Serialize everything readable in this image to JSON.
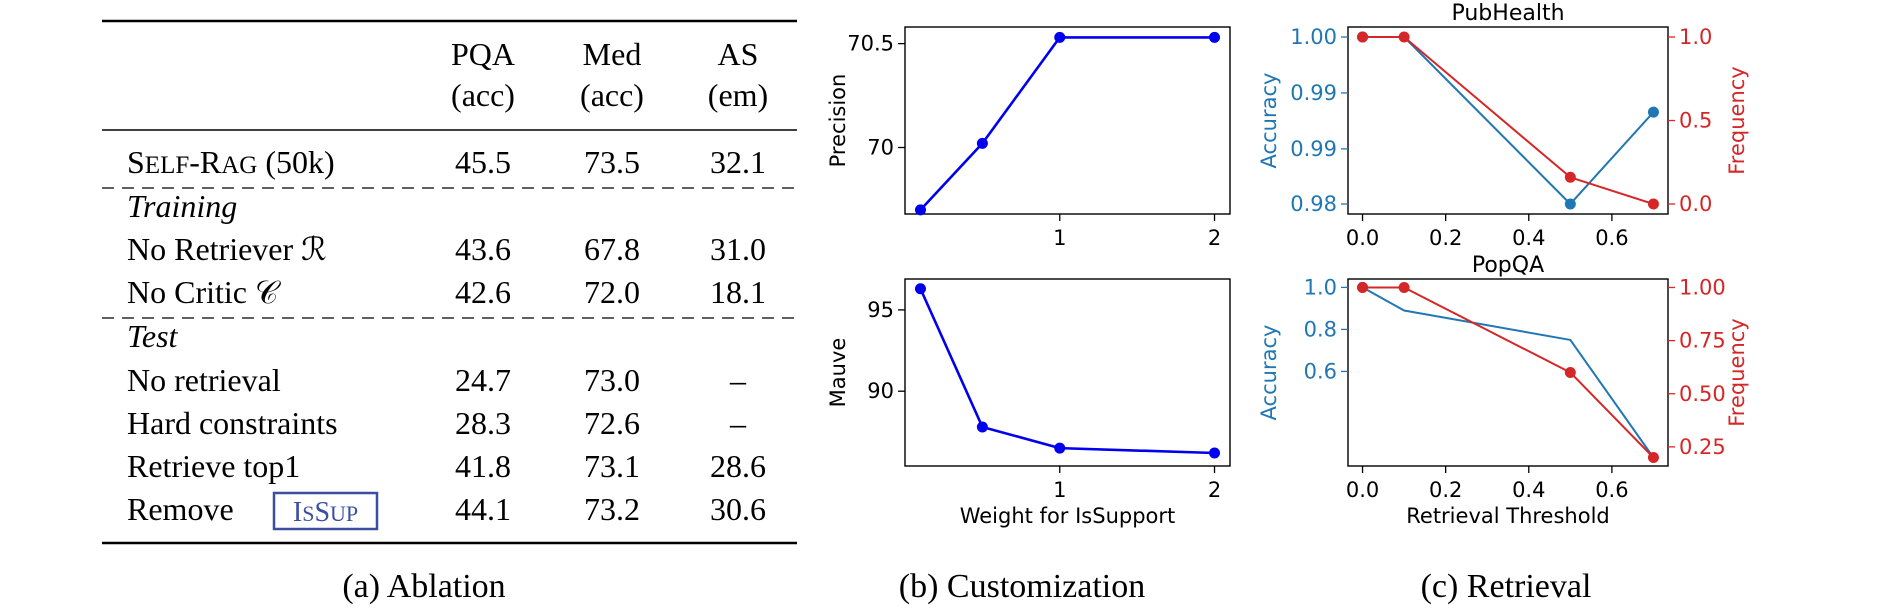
{
  "ablation": {
    "caption": "(a) Ablation",
    "headers": [
      {
        "line1": "PQA",
        "line2": "(acc)"
      },
      {
        "line1": "Med",
        "line2": "(acc)"
      },
      {
        "line1": "AS",
        "line2": "(em)"
      }
    ],
    "main_row": {
      "label": "SELF-RAG (50k)",
      "values": [
        "45.5",
        "73.5",
        "32.1"
      ]
    },
    "training_section": {
      "label": "Training",
      "rows": [
        {
          "label": "No Retriever ℛ",
          "values": [
            "43.6",
            "67.8",
            "31.0"
          ]
        },
        {
          "label": "No Critic 𝒞",
          "values": [
            "42.6",
            "72.0",
            "18.1"
          ]
        }
      ]
    },
    "test_section": {
      "label": "Test",
      "rows": [
        {
          "label": "No retrieval",
          "values": [
            "24.7",
            "73.0",
            "–"
          ]
        },
        {
          "label": "Hard constraints",
          "values": [
            "28.3",
            "72.6",
            "–"
          ]
        },
        {
          "label": "Retrieve top1",
          "values": [
            "41.8",
            "73.1",
            "28.6"
          ]
        },
        {
          "label": "Remove",
          "token": "ISSUP",
          "values": [
            "44.1",
            "73.2",
            "30.6"
          ]
        }
      ]
    },
    "token_color": "#3b4ea0"
  },
  "customization": {
    "caption": "(b) Customization"
  },
  "retrieval": {
    "caption": "(c) Retrieval"
  },
  "colors": {
    "blue_line": "#0000ee",
    "accuracy": "#1f77b4",
    "frequency": "#d62728"
  },
  "chart_data": [
    {
      "id": "b-top",
      "type": "line",
      "title": "",
      "xlabel": "",
      "ylabel": "Precision",
      "x": [
        0.1,
        0.5,
        1,
        2
      ],
      "series": [
        {
          "values": [
            69.7,
            70.02,
            70.53,
            70.53
          ],
          "color": "#0000ee"
        }
      ],
      "xlim": [
        0,
        2.1
      ],
      "ylim": [
        69.68,
        70.58
      ],
      "xticks": [
        1,
        2
      ],
      "yticks": [
        70.0,
        70.5
      ],
      "grid": false
    },
    {
      "id": "b-bottom",
      "type": "line",
      "title": "",
      "xlabel": "Weight for IsSupport",
      "ylabel": "Mauve",
      "x": [
        0.1,
        0.5,
        1,
        2
      ],
      "series": [
        {
          "values": [
            96.3,
            87.8,
            86.5,
            86.2
          ],
          "color": "#0000ee"
        }
      ],
      "xlim": [
        0,
        2.1
      ],
      "ylim": [
        85.4,
        96.9
      ],
      "xticks": [
        1,
        2
      ],
      "yticks": [
        90,
        95
      ],
      "grid": false
    },
    {
      "id": "c-top",
      "type": "line",
      "title": "PubHealth",
      "xlabel": "",
      "ylabel": "Accuracy",
      "y2label": "Frequency",
      "x": [
        0.0,
        0.1,
        0.5,
        0.7
      ],
      "series": [
        {
          "name": "",
          "axis": "left",
          "values": [
            1.0,
            1.0,
            0.98,
            0.991
          ],
          "color": "#1f77b4",
          "marker_points": [
            0,
            2,
            3
          ]
        },
        {
          "name": "",
          "axis": "right",
          "values": [
            1.0,
            1.0,
            0.16,
            0.0
          ],
          "color": "#d62728",
          "marker_points": [
            0,
            1,
            2,
            3
          ]
        }
      ],
      "xlim": [
        -0.035,
        0.735
      ],
      "ylim": [
        0.9788,
        1.0012
      ],
      "y2lim": [
        -0.06,
        1.06
      ],
      "xticks": [
        "0.0",
        "0.2",
        "0.4",
        "0.6"
      ],
      "xtick_values": [
        0.0,
        0.2,
        0.4,
        0.6
      ],
      "yticks": [
        "0.98",
        "0.99",
        "0.99",
        "1.00"
      ],
      "ytick_values": [
        0.98,
        0.9866,
        0.9933,
        1.0
      ],
      "y2ticks": [
        "0.0",
        "0.5",
        "1.0"
      ],
      "y2tick_values": [
        0.0,
        0.5,
        1.0
      ],
      "grid": false
    },
    {
      "id": "c-bottom",
      "type": "line",
      "title": "PopQA",
      "xlabel": "Retrieval Threshold",
      "ylabel": "Accuracy",
      "y2label": "Frequency",
      "x": [
        0.0,
        0.1,
        0.5,
        0.7
      ],
      "series": [
        {
          "name": "",
          "axis": "left",
          "values": [
            1.0,
            0.89,
            0.75,
            0.19
          ],
          "color": "#1f77b4",
          "marker_points": [
            0
          ]
        },
        {
          "name": "",
          "axis": "right",
          "values": [
            1.0,
            1.0,
            0.6,
            0.2
          ],
          "color": "#d62728",
          "marker_points": [
            0,
            1,
            2,
            3
          ]
        }
      ],
      "xlim": [
        -0.035,
        0.735
      ],
      "ylim": [
        0.15,
        1.04
      ],
      "y2lim": [
        0.16,
        1.04
      ],
      "xticks": [
        "0.0",
        "0.2",
        "0.4",
        "0.6"
      ],
      "xtick_values": [
        0.0,
        0.2,
        0.4,
        0.6
      ],
      "yticks": [
        "0.6",
        "0.8",
        "1.0"
      ],
      "ytick_values": [
        0.6,
        0.8,
        1.0
      ],
      "y2ticks": [
        "0.25",
        "0.50",
        "0.75",
        "1.00"
      ],
      "y2tick_values": [
        0.25,
        0.5,
        0.75,
        1.0
      ],
      "grid": false
    }
  ]
}
